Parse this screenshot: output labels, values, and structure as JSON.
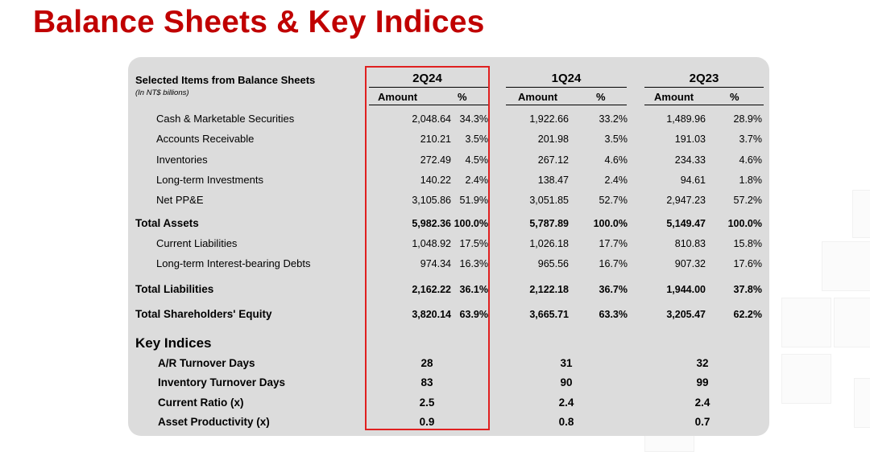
{
  "title": "Balance Sheets & Key Indices",
  "colors": {
    "title": "#c00000",
    "highlight": "#e02020",
    "panel": "#dcdcdc"
  },
  "header": {
    "left_title": "Selected Items from Balance Sheets",
    "left_sub": "(In NT$ billions)",
    "quarters": [
      "2Q24",
      "1Q24",
      "2Q23"
    ],
    "amount_label": "Amount",
    "pct_label": "%"
  },
  "rows": [
    {
      "label": "Cash & Marketable Securities",
      "bold": false,
      "values": [
        "2,048.64",
        "34.3%",
        "1,922.66",
        "33.2%",
        "1,489.96",
        "28.9%"
      ]
    },
    {
      "label": "Accounts Receivable",
      "bold": false,
      "values": [
        "210.21",
        "3.5%",
        "201.98",
        "3.5%",
        "191.03",
        "3.7%"
      ]
    },
    {
      "label": "Inventories",
      "bold": false,
      "values": [
        "272.49",
        "4.5%",
        "267.12",
        "4.6%",
        "234.33",
        "4.6%"
      ]
    },
    {
      "label": "Long-term Investments",
      "bold": false,
      "values": [
        "140.22",
        "2.4%",
        "138.47",
        "2.4%",
        "94.61",
        "1.8%"
      ]
    },
    {
      "label": "Net PP&E",
      "bold": false,
      "values": [
        "3,105.86",
        "51.9%",
        "3,051.85",
        "52.7%",
        "2,947.23",
        "57.2%"
      ]
    },
    {
      "label": "Total Assets",
      "bold": true,
      "values": [
        "5,982.36",
        "100.0%",
        "5,787.89",
        "100.0%",
        "5,149.47",
        "100.0%"
      ]
    },
    {
      "label": "Current Liabilities",
      "bold": false,
      "values": [
        "1,048.92",
        "17.5%",
        "1,026.18",
        "17.7%",
        "810.83",
        "15.8%"
      ]
    },
    {
      "label": "Long-term Interest-bearing Debts",
      "bold": false,
      "values": [
        "974.34",
        "16.3%",
        "965.56",
        "16.7%",
        "907.32",
        "17.6%"
      ]
    },
    {
      "label": "Total Liabilities",
      "bold": true,
      "values": [
        "2,162.22",
        "36.1%",
        "2,122.18",
        "36.7%",
        "1,944.00",
        "37.8%"
      ]
    },
    {
      "label": "Total Shareholders' Equity",
      "bold": true,
      "values": [
        "3,820.14",
        "63.9%",
        "3,665.71",
        "63.3%",
        "3,205.47",
        "62.2%"
      ]
    }
  ],
  "key_indices": {
    "title": "Key Indices",
    "items": [
      {
        "label": "A/R Turnover Days",
        "values": [
          "28",
          "31",
          "32"
        ]
      },
      {
        "label": "Inventory Turnover Days",
        "values": [
          "83",
          "90",
          "99"
        ]
      },
      {
        "label": "Current Ratio (x)",
        "values": [
          "2.5",
          "2.4",
          "2.4"
        ]
      },
      {
        "label": "Asset Productivity (x)",
        "values": [
          "0.9",
          "0.8",
          "0.7"
        ]
      }
    ]
  }
}
